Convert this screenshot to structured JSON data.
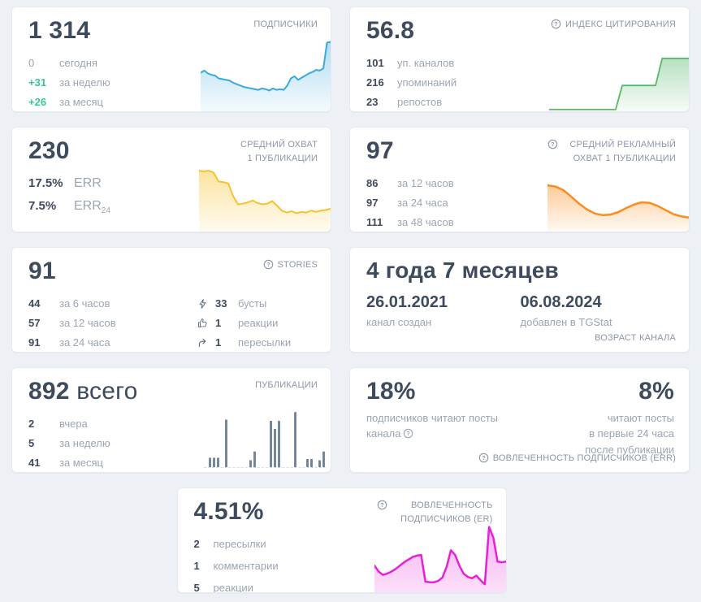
{
  "page": {
    "background": "#edf0f5",
    "positive_color": "#35c990",
    "text_dark": "#3e4b5d",
    "text_muted": "#9aa5b4"
  },
  "cards": {
    "subscribers": {
      "title": "ПОДПИСЧИКИ",
      "value": "1 314",
      "stats": [
        {
          "value": "0",
          "label": "сегодня"
        },
        {
          "value": "+31",
          "label": "за неделю"
        },
        {
          "value": "+26",
          "label": "за месяц"
        }
      ]
    },
    "citation_index": {
      "title": "ИНДЕКС ЦИТИРОВАНИЯ",
      "value": "56.8",
      "stats": [
        {
          "value": "101",
          "label": "уп. каналов"
        },
        {
          "value": "216",
          "label": "упоминаний"
        },
        {
          "value": "23",
          "label": "репостов"
        }
      ]
    },
    "avg_reach": {
      "title": "СРЕДНИЙ ОХВАТ 1 ПУБЛИКАЦИИ",
      "value": "230",
      "stats": [
        {
          "value": "17.5%",
          "label": "ERR"
        },
        {
          "value": "7.5%",
          "label": "ERR",
          "label_sub": "24"
        }
      ]
    },
    "avg_ad_reach": {
      "title": "СРЕДНИЙ РЕКЛАМНЫЙ ОХВАТ 1 ПУБЛИКАЦИИ",
      "value": "97",
      "stats": [
        {
          "value": "86",
          "label": "за 12 часов"
        },
        {
          "value": "97",
          "label": "за 24 часа"
        },
        {
          "value": "111",
          "label": "за 48 часов"
        }
      ]
    },
    "stories": {
      "title": "STORIES",
      "value": "91",
      "stats_left": [
        {
          "value": "44",
          "label": "за 6 часов"
        },
        {
          "value": "57",
          "label": "за 12 часов"
        },
        {
          "value": "91",
          "label": "за 24 часа"
        }
      ],
      "stats_right": [
        {
          "icon": "boost-icon",
          "value": "33",
          "label": "бусты"
        },
        {
          "icon": "like-icon",
          "value": "1",
          "label": "реакции"
        },
        {
          "icon": "forward-icon",
          "value": "1",
          "label": "пересылки"
        }
      ]
    },
    "channel_age": {
      "value": "4 года 7 месяцев",
      "created_date": "26.01.2021",
      "created_label": "канал создан",
      "added_date": "06.08.2024",
      "added_label": "добавлен в TGStat",
      "footer": "ВОЗРАСТ КАНАЛА"
    },
    "publications": {
      "title": "ПУБЛИКАЦИИ",
      "value": "892",
      "value_suffix": "всего",
      "stats": [
        {
          "value": "2",
          "label": "вчера"
        },
        {
          "value": "5",
          "label": "за неделю"
        },
        {
          "value": "41",
          "label": "за месяц"
        }
      ]
    },
    "err": {
      "left_value": "18%",
      "left_label": "подписчиков читают посты канала",
      "right_value": "8%",
      "right_label": "читают посты\nв первые 24 часа\nпосле публикации",
      "footer": "ВОВЛЕЧЕННОСТЬ ПОДПИСЧИКОВ (ERR)"
    },
    "er": {
      "title": "ВОВЛЕЧЕННОСТЬ ПОДПИСЧИКОВ (ER)",
      "value": "4.51%",
      "stats": [
        {
          "value": "2",
          "label": "пересылки"
        },
        {
          "value": "1",
          "label": "комментарии"
        },
        {
          "value": "5",
          "label": "реакции"
        }
      ]
    }
  },
  "chart_data": {
    "subscribers": {
      "type": "area",
      "label": "динамика подписчиков",
      "color": "#3aa9dc",
      "fill_from": "rgba(58,169,220,0.40)",
      "fill_to": "rgba(58,169,220,0.06)",
      "stroke_width": 2,
      "values": [
        54,
        57,
        53,
        51,
        50,
        46,
        45,
        44,
        43,
        40,
        38,
        36,
        34,
        33,
        32,
        31,
        30,
        32,
        31,
        29,
        32,
        30,
        31,
        30,
        36,
        46,
        49,
        44,
        47,
        50,
        53,
        55,
        58,
        57,
        60,
        96,
        97
      ]
    },
    "citation_index": {
      "type": "area",
      "label": "динамика индекса цитирования",
      "color": "#57b86a",
      "fill_from": "rgba(87,184,106,0.42)",
      "fill_to": "rgba(87,184,106,0.05)",
      "stroke_width": 1.8,
      "values": [
        3,
        3,
        3,
        3,
        3,
        3,
        3,
        3,
        3,
        3,
        3,
        43,
        43,
        43,
        43,
        43,
        43,
        88,
        88,
        88,
        88,
        88
      ]
    },
    "avg_reach": {
      "type": "area",
      "label": "динамика среднего охвата",
      "color": "#f6c22e",
      "fill_from": "rgba(246,194,46,0.45)",
      "fill_to": "rgba(246,194,46,0.07)",
      "stroke_width": 2,
      "values": [
        96,
        95,
        96,
        93,
        79,
        78,
        76,
        56,
        43,
        44,
        46,
        49,
        45,
        43,
        44,
        48,
        41,
        33,
        30,
        32,
        29,
        31,
        30,
        33,
        31,
        33,
        34,
        36
      ]
    },
    "avg_ad_reach": {
      "type": "area",
      "label": "динамика рекламного охвата",
      "color": "#fb8c1e",
      "fill_from": "rgba(251,140,30,0.45)",
      "fill_to": "rgba(251,140,30,0.05)",
      "stroke_width": 2.5,
      "values": [
        79,
        77,
        71,
        60,
        48,
        38,
        31,
        28,
        29,
        33,
        40,
        46,
        50,
        49,
        44,
        37,
        30,
        26,
        24
      ]
    },
    "publications": {
      "type": "bar",
      "label": "публикации по дням",
      "color": "#6d8095",
      "values": [
        0,
        15,
        15,
        15,
        0,
        76,
        0,
        0,
        0,
        0,
        0,
        11,
        25,
        0,
        0,
        0,
        74,
        61,
        74,
        0,
        0,
        0,
        88,
        0,
        0,
        13,
        13,
        0,
        11,
        25
      ]
    },
    "er": {
      "type": "area",
      "label": "динамика вовлеченности (ER)",
      "color": "#e620d7",
      "fill_from": "rgba(230,32,215,0.35)",
      "fill_to": "rgba(230,32,215,0.14)",
      "stroke_width": 2.5,
      "values": [
        40,
        31,
        26,
        28,
        31,
        35,
        40,
        45,
        49,
        53,
        55,
        56,
        16,
        15,
        15,
        17,
        22,
        38,
        63,
        56,
        40,
        28,
        23,
        21,
        25,
        18,
        12,
        98,
        82,
        46,
        45,
        46
      ]
    }
  }
}
